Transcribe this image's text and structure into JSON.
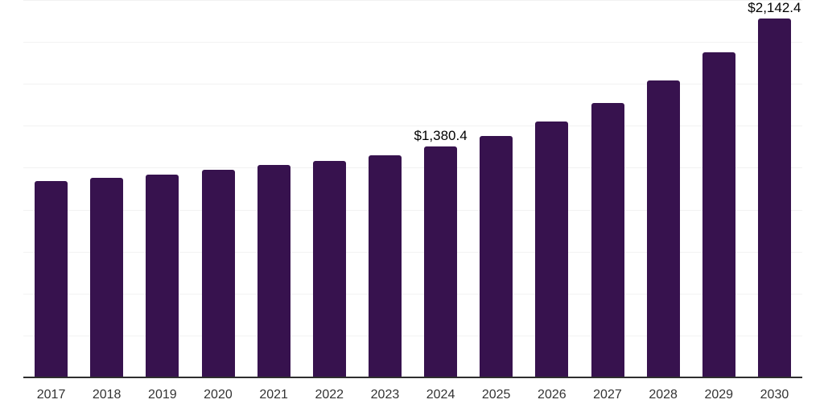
{
  "chart_data": {
    "type": "bar",
    "title": "",
    "xlabel": "",
    "ylabel": "",
    "categories": [
      "2017",
      "2018",
      "2019",
      "2020",
      "2021",
      "2022",
      "2023",
      "2024",
      "2025",
      "2026",
      "2027",
      "2028",
      "2029",
      "2030"
    ],
    "values": [
      1175.5,
      1194.7,
      1213.9,
      1242.7,
      1271.5,
      1295.5,
      1329.0,
      1380.4,
      1444.2,
      1530.6,
      1641.0,
      1775.3,
      1943.2,
      2142.4
    ],
    "labeled_points": [
      {
        "index": 7,
        "category": "2024",
        "label": "$1,380.4"
      },
      {
        "index": 13,
        "category": "2030",
        "label": "$2,142.4"
      }
    ],
    "ylim": [
      0,
      2250
    ],
    "gridline_step": 250,
    "grid": true,
    "legend_position": "none",
    "y_tick_labels_visible": false,
    "colors": {
      "bar": "#37124E",
      "gridline": "#f2f2f2",
      "axis_line": "#2e2e2e",
      "tick_label": "#333333",
      "data_label": "#000000",
      "background": "#ffffff"
    }
  }
}
